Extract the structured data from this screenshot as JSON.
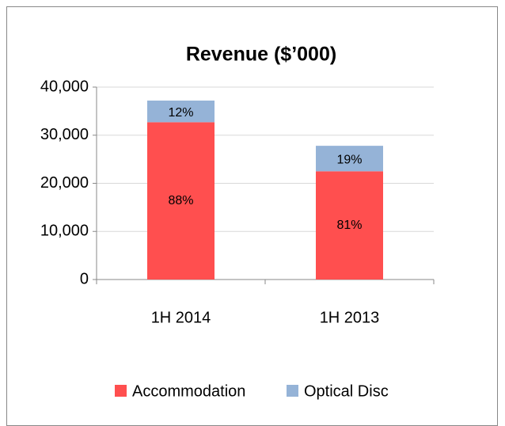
{
  "chart_data": {
    "type": "stacked_bar",
    "title": "Revenue ($’000)",
    "categories": [
      "1H 2014",
      "1H 2013"
    ],
    "series": [
      {
        "name": "Accommodation",
        "color": "#ff4f4f",
        "values": [
          32700,
          22500
        ],
        "data_labels": [
          "88%",
          "81%"
        ]
      },
      {
        "name": "Optical Disc",
        "color": "#95b3d7",
        "values": [
          4500,
          5300
        ],
        "data_labels": [
          "12%",
          "19%"
        ]
      }
    ],
    "ylim": [
      0,
      40000
    ],
    "yticks": [
      0,
      {
        "value": 10000,
        "label": "10,000"
      },
      {
        "value": 20000,
        "label": "20,000"
      },
      {
        "value": 30000,
        "label": "30,000"
      },
      {
        "value": 40000,
        "label": "40,000"
      }
    ],
    "grid": true,
    "legend": "bottom"
  }
}
